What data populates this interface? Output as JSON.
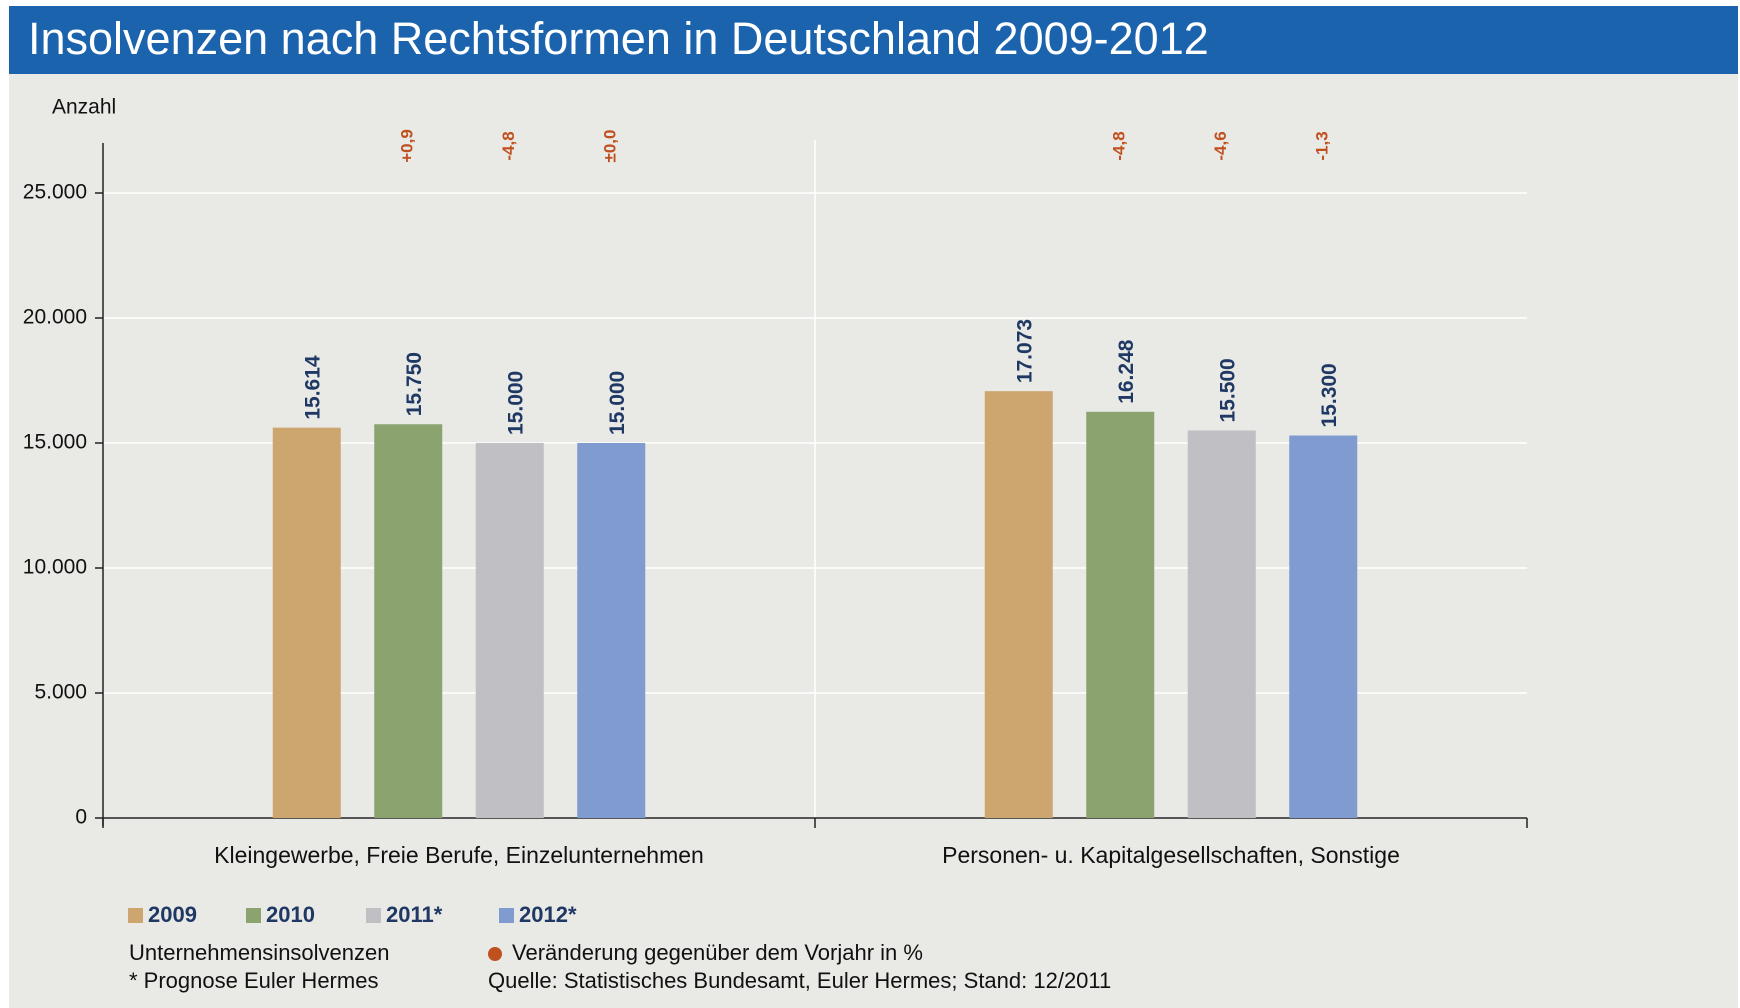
{
  "chart_data": {
    "type": "bar",
    "title": "Insolvenzen nach Rechtsformen in Deutschland 2009-2012",
    "y_label": "Anzahl",
    "categories": [
      "Kleingewerbe, Freie Berufe, Einzelunternehmen",
      "Personen- u. Kapitalgesellschaften, Sonstige"
    ],
    "series": [
      {
        "name": "2009",
        "color": "#cda56e",
        "values": [
          15614,
          17073
        ],
        "value_labels": [
          "15.614",
          "17.073"
        ]
      },
      {
        "name": "2010",
        "color": "#8aa36f",
        "values": [
          15750,
          16248
        ],
        "value_labels": [
          "15.750",
          "16.248"
        ],
        "changes": [
          0.9,
          -4.8
        ],
        "change_labels": [
          "+0,9",
          "-4,8"
        ]
      },
      {
        "name": "2011*",
        "color": "#c0c0c4",
        "values": [
          15000,
          15500
        ],
        "value_labels": [
          "15.000",
          "15.500"
        ],
        "changes": [
          -4.8,
          -4.6
        ],
        "change_labels": [
          "-4,8",
          "-4,6"
        ]
      },
      {
        "name": "2012*",
        "color": "#7f9bcf",
        "values": [
          15000,
          15300
        ],
        "value_labels": [
          "15.000",
          "15.300"
        ],
        "changes": [
          0.0,
          -1.3
        ],
        "change_labels": [
          "±0,0",
          "-1,3"
        ]
      }
    ],
    "ylim": [
      0,
      27000
    ],
    "yticks": [
      0,
      {
        "value": 5000,
        "label": "5.000"
      },
      {
        "value": 10000,
        "label": "10.000"
      },
      {
        "value": 15000,
        "label": "15.000"
      },
      {
        "value": 20000,
        "label": "20.000"
      },
      {
        "value": 25000,
        "label": "25.000"
      }
    ],
    "grid": true,
    "change_color": "#c0501e",
    "notes": {
      "left": [
        "Unternehmensinsolvenzen",
        "* Prognose Euler Hermes"
      ],
      "change_legend": "Veränderung gegenüber dem Vorjahr in %",
      "source": "Quelle: Statistisches Bundesamt, Euler Hermes; Stand: 12/2011"
    }
  }
}
